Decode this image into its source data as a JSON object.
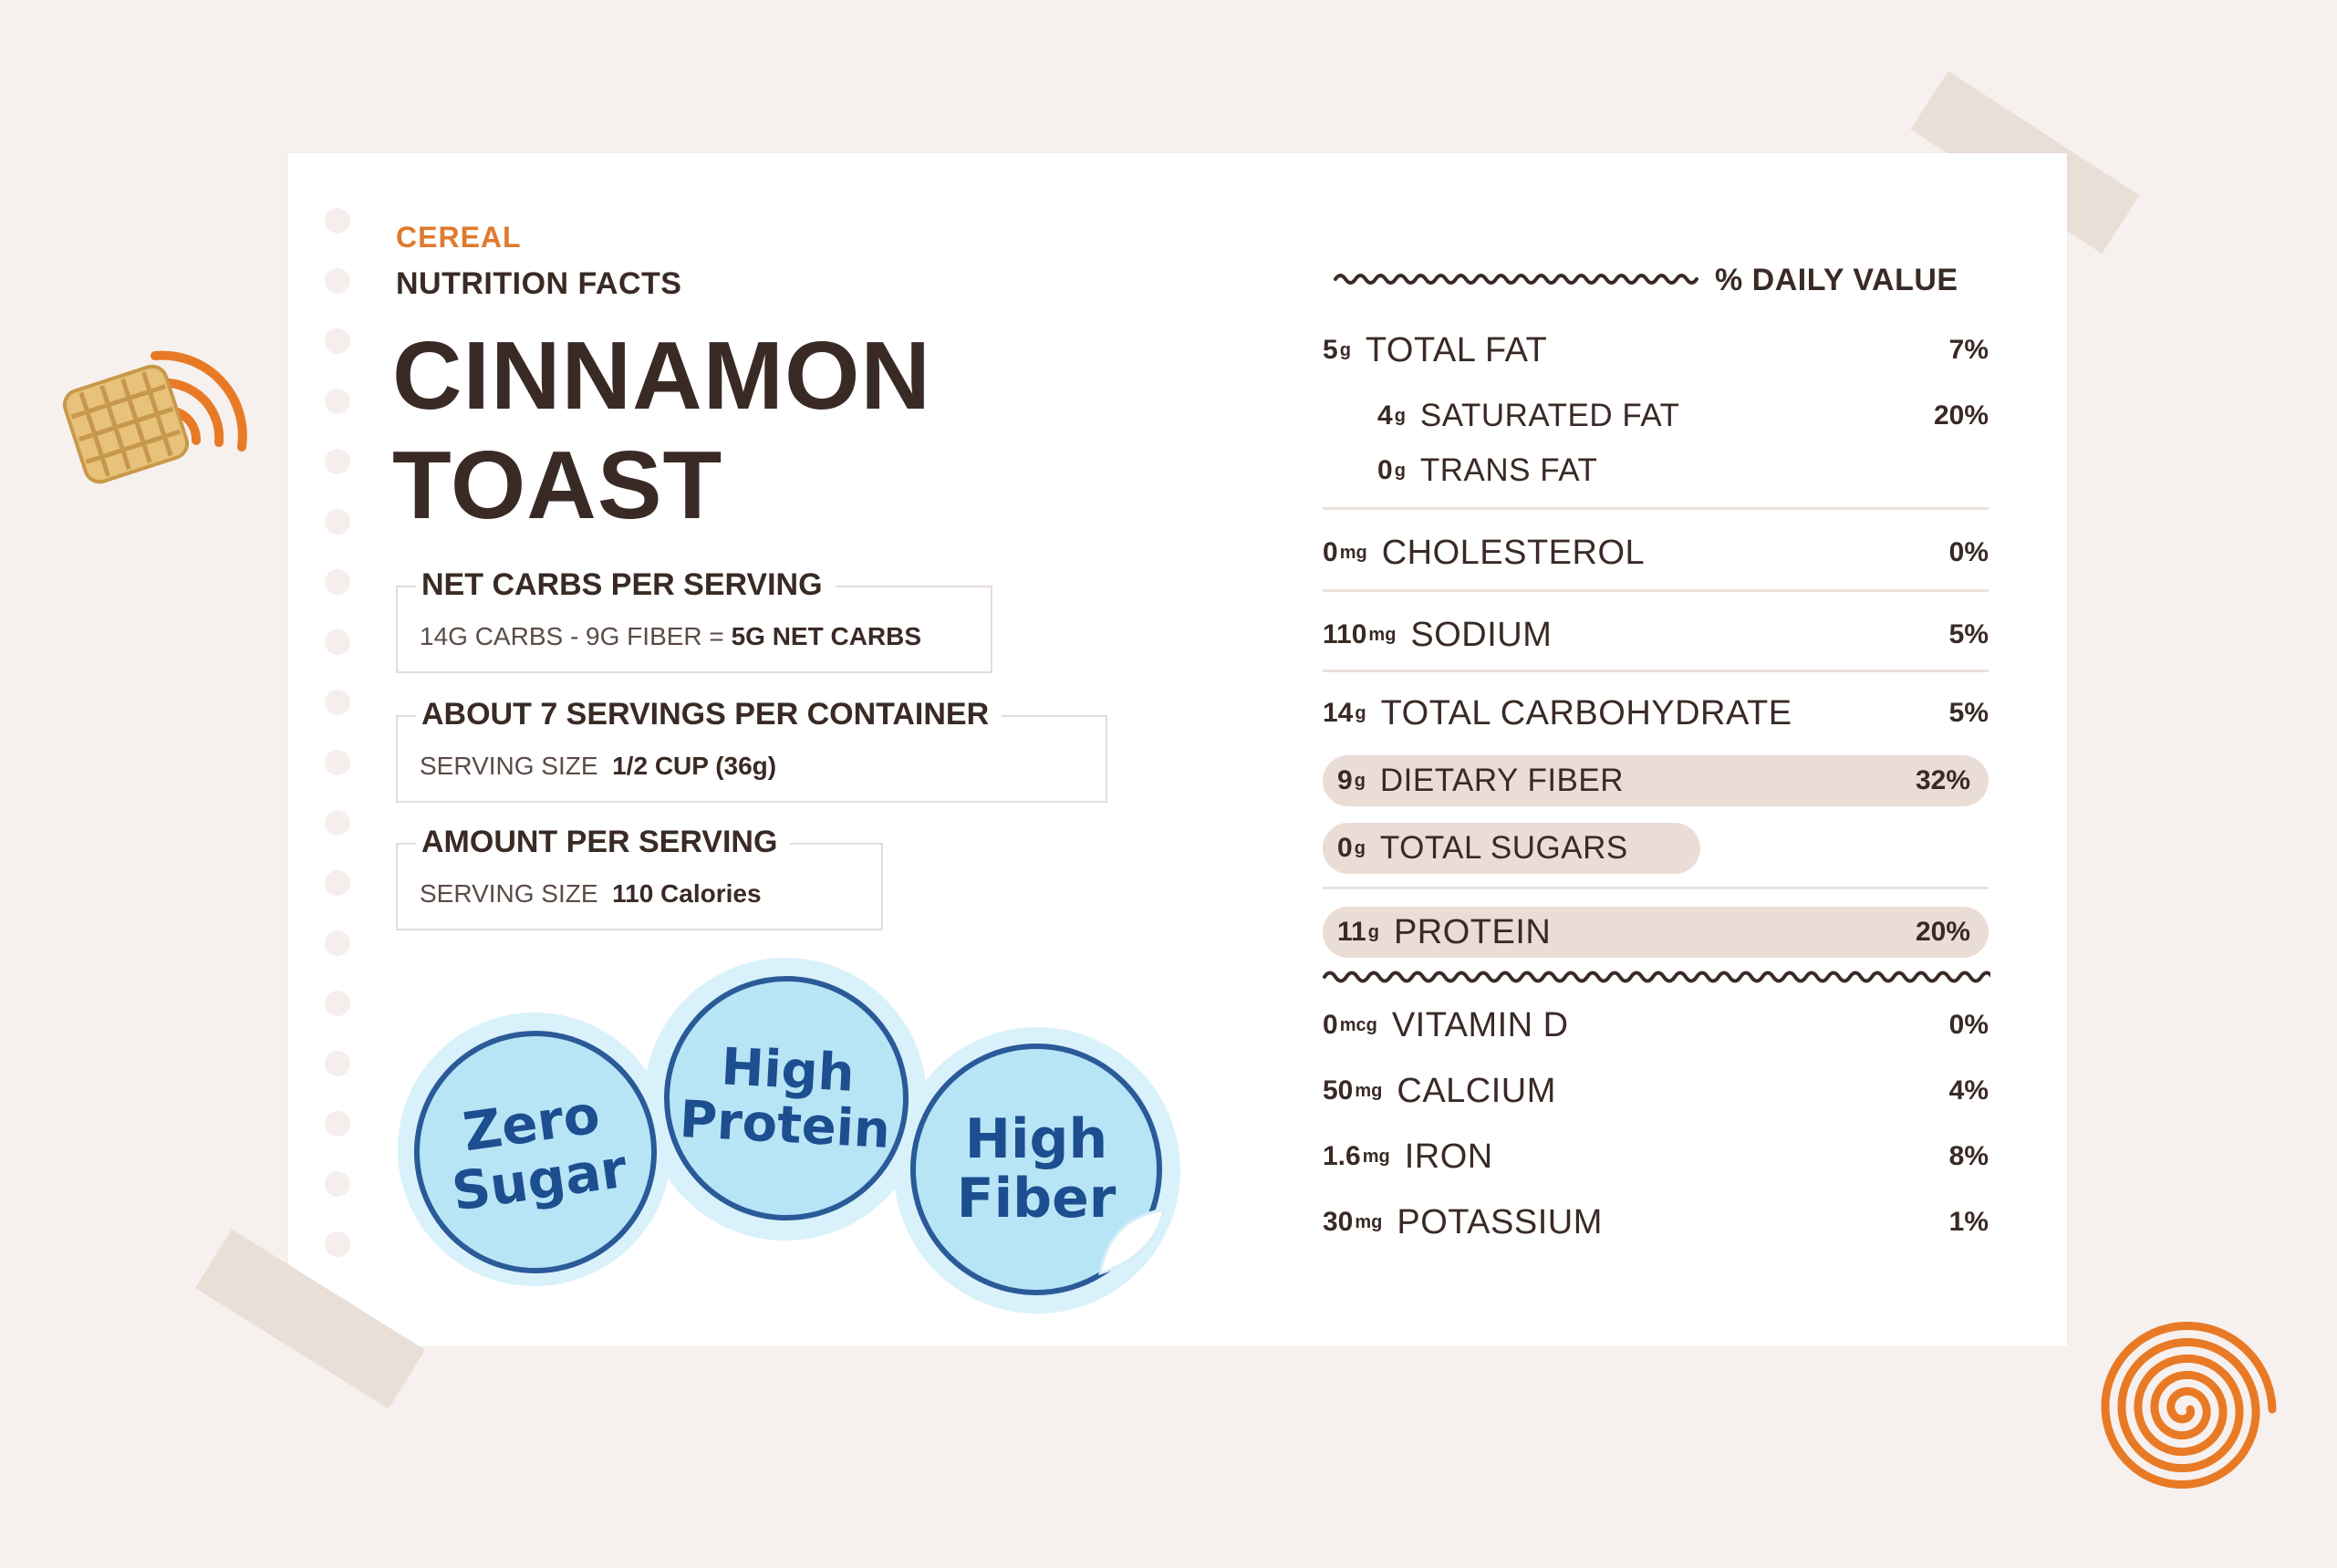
{
  "header": {
    "category": "CEREAL",
    "subtitle": "NUTRITION FACTS",
    "title_line1": "CINNAMON",
    "title_line2": "TOAST"
  },
  "boxes": {
    "net_carbs": {
      "heading": "NET CARBS PER SERVING",
      "body_plain": "14G CARBS - 9G FIBER = ",
      "body_bold": "5G NET CARBS"
    },
    "servings": {
      "heading": "ABOUT 7 SERVINGS PER CONTAINER",
      "body_plain": "SERVING SIZE",
      "body_bold": "1/2 CUP (36g)"
    },
    "amount": {
      "heading": "AMOUNT PER SERVING",
      "body_plain": "SERVING SIZE",
      "body_bold": "110 Calories"
    }
  },
  "badges": {
    "zero_sugar": [
      "Zero",
      "Sugar"
    ],
    "high_protein": [
      "High",
      "Protein"
    ],
    "high_fiber": [
      "High",
      "Fiber"
    ]
  },
  "daily_value_header": "% DAILY VALUE",
  "nutrients": {
    "total_fat": {
      "amount": "5",
      "unit": "g",
      "name": "TOTAL FAT",
      "pct": "7%"
    },
    "saturated_fat": {
      "amount": "4",
      "unit": "g",
      "name": "SATURATED FAT",
      "pct": "20%"
    },
    "trans_fat": {
      "amount": "0",
      "unit": "g",
      "name": "TRANS FAT",
      "pct": ""
    },
    "cholesterol": {
      "amount": "0",
      "unit": "mg",
      "name": "CHOLESTEROL",
      "pct": "0%"
    },
    "sodium": {
      "amount": "110",
      "unit": "mg",
      "name": "SODIUM",
      "pct": "5%"
    },
    "total_carbohydrate": {
      "amount": "14",
      "unit": "g",
      "name": "TOTAL CARBOHYDRATE",
      "pct": "5%"
    },
    "dietary_fiber": {
      "amount": "9",
      "unit": "g",
      "name": "DIETARY FIBER",
      "pct": "32%"
    },
    "total_sugars": {
      "amount": "0",
      "unit": "g",
      "name": "TOTAL SUGARS",
      "pct": ""
    },
    "protein": {
      "amount": "11",
      "unit": "g",
      "name": "PROTEIN",
      "pct": "20%"
    },
    "vitamin_d": {
      "amount": "0",
      "unit": "mcg",
      "name": "VITAMIN D",
      "pct": "0%"
    },
    "calcium": {
      "amount": "50",
      "unit": "mg",
      "name": "CALCIUM",
      "pct": "4%"
    },
    "iron": {
      "amount": "1.6",
      "unit": "mg",
      "name": "IRON",
      "pct": "8%"
    },
    "potassium": {
      "amount": "30",
      "unit": "mg",
      "name": "POTASSIUM",
      "pct": "1%"
    }
  },
  "colors": {
    "accent_orange": "#e07a2e",
    "text_brown": "#3a2a25",
    "badge_blue": "#2a5a98",
    "pill_beige": "#e9ddd6"
  },
  "icons": {
    "cereal_piece": "cereal-square-icon",
    "swirl_left": "wave-arc-icon",
    "swirl_right": "spiral-icon"
  }
}
